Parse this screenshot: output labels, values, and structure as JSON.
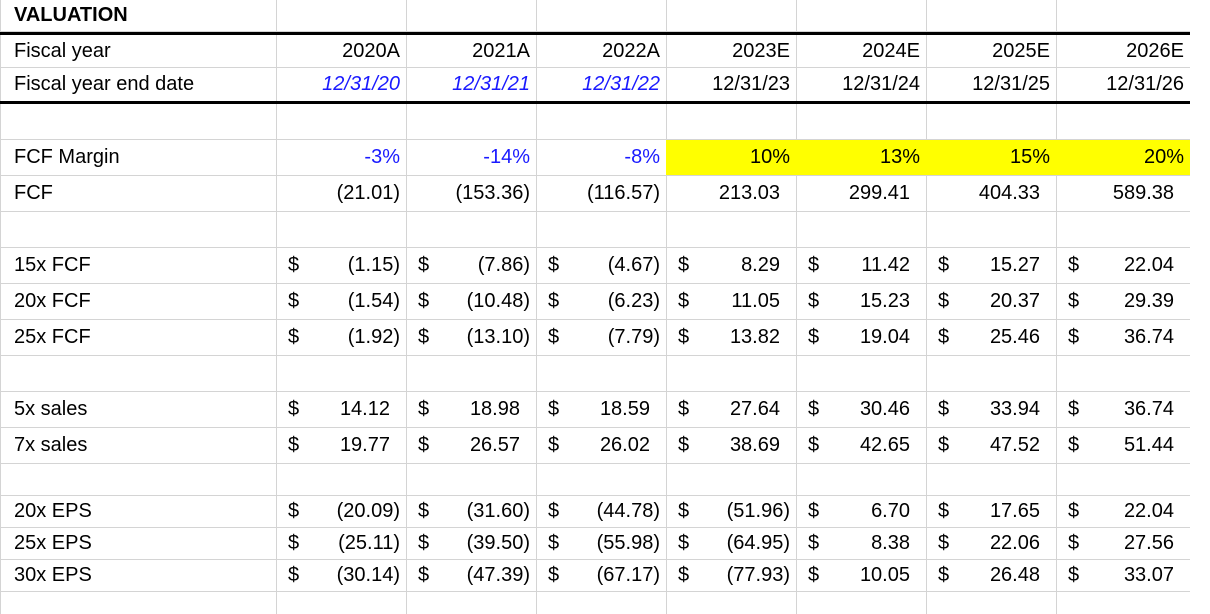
{
  "sheet": {
    "title": "VALUATION",
    "header": {
      "fiscal_year_label": "Fiscal year",
      "fiscal_years": [
        "2020A",
        "2021A",
        "2022A",
        "2023E",
        "2024E",
        "2025E",
        "2026E"
      ],
      "end_date_label": "Fiscal year end date",
      "end_dates": [
        "12/31/20",
        "12/31/21",
        "12/31/22",
        "12/31/23",
        "12/31/24",
        "12/31/25",
        "12/31/26"
      ]
    },
    "fcf_margin": {
      "label": "FCF Margin",
      "values": [
        "-3%",
        "-14%",
        "-8%",
        "10%",
        "13%",
        "15%",
        "20%"
      ]
    },
    "fcf": {
      "label": "FCF",
      "values": [
        "(21.01)",
        "(153.36)",
        "(116.57)",
        "213.03",
        "299.41",
        "404.33",
        "589.38"
      ]
    },
    "currency_symbol": "$",
    "fcf_multiples": [
      {
        "label": "15x FCF",
        "values": [
          "(1.15)",
          "(7.86)",
          "(4.67)",
          "8.29",
          "11.42",
          "15.27",
          "22.04"
        ]
      },
      {
        "label": "20x FCF",
        "values": [
          "(1.54)",
          "(10.48)",
          "(6.23)",
          "11.05",
          "15.23",
          "20.37",
          "29.39"
        ]
      },
      {
        "label": "25x FCF",
        "values": [
          "(1.92)",
          "(13.10)",
          "(7.79)",
          "13.82",
          "19.04",
          "25.46",
          "36.74"
        ]
      }
    ],
    "sales_multiples": [
      {
        "label": "5x sales",
        "values": [
          "14.12",
          "18.98",
          "18.59",
          "27.64",
          "30.46",
          "33.94",
          "36.74"
        ]
      },
      {
        "label": "7x sales",
        "values": [
          "19.77",
          "26.57",
          "26.02",
          "38.69",
          "42.65",
          "47.52",
          "51.44"
        ]
      }
    ],
    "eps_multiples": [
      {
        "label": "20x EPS",
        "values": [
          "(20.09)",
          "(31.60)",
          "(44.78)",
          "(51.96)",
          "6.70",
          "17.65",
          "22.04"
        ]
      },
      {
        "label": "25x EPS",
        "values": [
          "(25.11)",
          "(39.50)",
          "(55.98)",
          "(64.95)",
          "8.38",
          "22.06",
          "27.56"
        ]
      },
      {
        "label": "30x EPS",
        "values": [
          "(30.14)",
          "(47.39)",
          "(67.17)",
          "(77.93)",
          "10.05",
          "26.48",
          "33.07"
        ]
      }
    ],
    "colors": {
      "input_blue": "#1a1aff",
      "highlight_yellow": "#ffff00",
      "gridline": "#d4d4d4"
    }
  }
}
